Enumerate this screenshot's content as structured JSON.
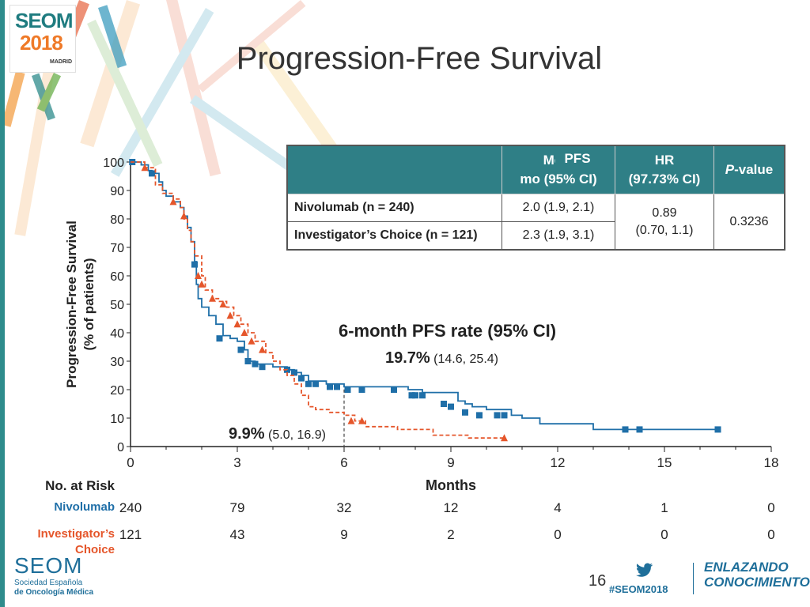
{
  "title": "Progression-Free Survival",
  "logo": {
    "line1": "SEOM",
    "line2": "2018",
    "city": "MADRID"
  },
  "footer": {
    "org_name": "SEOM",
    "org_line1": "Sociedad Española",
    "org_line2": "de Oncología Médica",
    "slide_number": "16",
    "hashtag": "#SEOM2018",
    "slogan_line1": "ENLAZANDO",
    "slogan_line2": "CONOCIMIENTO",
    "twitter_icon": "twitter-bird-icon"
  },
  "table": {
    "headers": {
      "arm": "",
      "median_a": "Medi",
      "median_b": "mo (95% CI)",
      "hr_a": "HR",
      "hr_b": "(97.73% CI)",
      "p": "P-value"
    },
    "overlay_tag": "PFS",
    "rows": [
      {
        "arm": "Nivolumab (n = 240)",
        "median": "2.0 (1.9, 2.1)"
      },
      {
        "arm": "Investigator’s Choice (n = 121)",
        "median": "2.3 (1.9, 3.1)"
      }
    ],
    "hr_line1": "0.89",
    "hr_line2": "(0.70, 1.1)",
    "p_value": "0.3236"
  },
  "annotations": {
    "rate_title": "6-month PFS rate (95% CI)",
    "nivo_rate": "19.7%",
    "nivo_ci": " (14.6, 25.4)",
    "ic_rate": "9.9%",
    "ic_ci": " (5.0, 16.9)"
  },
  "colors": {
    "nivolumab": "#1f6fa8",
    "investigator": "#e5562b",
    "header_bg": "#2f7f86"
  },
  "chart_data": {
    "type": "line",
    "xlabel": "Months",
    "ylabel": "Progression-Free Survival (% of patients)",
    "ylabel_line1": "Progression-Free Survival",
    "ylabel_line2": "(% of patients)",
    "xlim": [
      0,
      18
    ],
    "ylim": [
      0,
      100
    ],
    "xticks": [
      0,
      3,
      6,
      9,
      12,
      15,
      18
    ],
    "yticks": [
      0,
      10,
      20,
      30,
      40,
      50,
      60,
      70,
      80,
      90,
      100
    ],
    "reference_x": 6,
    "series": [
      {
        "name": "Nivolumab",
        "color": "#1f6fa8",
        "dash": false,
        "marker": "square",
        "points": [
          [
            0,
            100
          ],
          [
            0.3,
            99
          ],
          [
            0.5,
            97
          ],
          [
            0.6,
            96
          ],
          [
            0.8,
            93
          ],
          [
            0.9,
            90
          ],
          [
            1.0,
            88
          ],
          [
            1.2,
            86
          ],
          [
            1.4,
            84
          ],
          [
            1.5,
            81
          ],
          [
            1.6,
            77
          ],
          [
            1.7,
            72
          ],
          [
            1.8,
            65
          ],
          [
            1.85,
            57
          ],
          [
            1.9,
            52
          ],
          [
            2.0,
            49
          ],
          [
            2.2,
            46
          ],
          [
            2.4,
            43
          ],
          [
            2.6,
            39
          ],
          [
            2.8,
            38
          ],
          [
            3.0,
            37
          ],
          [
            3.2,
            34
          ],
          [
            3.3,
            30
          ],
          [
            3.5,
            29
          ],
          [
            4.0,
            28
          ],
          [
            4.4,
            27
          ],
          [
            4.6,
            26
          ],
          [
            4.8,
            25
          ],
          [
            5.0,
            23
          ],
          [
            5.5,
            22
          ],
          [
            6.0,
            21
          ],
          [
            6.5,
            21
          ],
          [
            7.0,
            21
          ],
          [
            7.5,
            21
          ],
          [
            7.8,
            20
          ],
          [
            8.2,
            19
          ],
          [
            9.0,
            19
          ],
          [
            9.2,
            16
          ],
          [
            9.4,
            15
          ],
          [
            9.6,
            14
          ],
          [
            10.0,
            13
          ],
          [
            10.5,
            13
          ],
          [
            10.7,
            11
          ],
          [
            11.0,
            10
          ],
          [
            11.5,
            8
          ],
          [
            13.0,
            6
          ],
          [
            14.0,
            6
          ],
          [
            15.0,
            6
          ],
          [
            16.5,
            6
          ]
        ],
        "censors": [
          [
            0.05,
            100
          ],
          [
            0.6,
            96
          ],
          [
            1.8,
            64
          ],
          [
            2.5,
            38
          ],
          [
            3.1,
            34
          ],
          [
            3.3,
            30
          ],
          [
            3.5,
            29
          ],
          [
            3.7,
            28
          ],
          [
            4.4,
            27
          ],
          [
            4.6,
            26
          ],
          [
            4.8,
            24
          ],
          [
            5.0,
            22
          ],
          [
            5.2,
            22
          ],
          [
            5.6,
            21
          ],
          [
            5.8,
            21
          ],
          [
            6.1,
            20
          ],
          [
            6.5,
            20
          ],
          [
            7.4,
            20
          ],
          [
            7.9,
            18
          ],
          [
            8.0,
            18
          ],
          [
            8.2,
            18
          ],
          [
            8.8,
            15
          ],
          [
            9.0,
            14
          ],
          [
            9.4,
            12
          ],
          [
            9.8,
            11
          ],
          [
            10.3,
            11
          ],
          [
            10.5,
            11
          ],
          [
            13.9,
            6
          ],
          [
            14.3,
            6
          ],
          [
            16.5,
            6
          ]
        ]
      },
      {
        "name": "Investigator’s Choice",
        "color": "#e5562b",
        "dash": true,
        "marker": "triangle",
        "points": [
          [
            0,
            100
          ],
          [
            0.4,
            98
          ],
          [
            0.7,
            92
          ],
          [
            0.9,
            89
          ],
          [
            1.2,
            87
          ],
          [
            1.4,
            84
          ],
          [
            1.5,
            80
          ],
          [
            1.6,
            76
          ],
          [
            1.7,
            72
          ],
          [
            1.8,
            67
          ],
          [
            2.0,
            60
          ],
          [
            2.1,
            55
          ],
          [
            2.3,
            52
          ],
          [
            2.5,
            51
          ],
          [
            2.7,
            49
          ],
          [
            2.9,
            46
          ],
          [
            3.1,
            43
          ],
          [
            3.3,
            40
          ],
          [
            3.5,
            37
          ],
          [
            3.8,
            33
          ],
          [
            4.0,
            30
          ],
          [
            4.2,
            27
          ],
          [
            4.4,
            25
          ],
          [
            4.6,
            22
          ],
          [
            4.8,
            18
          ],
          [
            5.0,
            14
          ],
          [
            5.2,
            13
          ],
          [
            5.6,
            12
          ],
          [
            6.0,
            11
          ],
          [
            6.3,
            9
          ],
          [
            6.6,
            7
          ],
          [
            7.0,
            7
          ],
          [
            7.5,
            6
          ],
          [
            8.0,
            6
          ],
          [
            8.5,
            4
          ],
          [
            9.0,
            4
          ],
          [
            9.5,
            3
          ],
          [
            10.0,
            3
          ],
          [
            10.5,
            3
          ]
        ],
        "censors": [
          [
            0.4,
            98
          ],
          [
            1.2,
            86
          ],
          [
            1.5,
            81
          ],
          [
            1.9,
            60
          ],
          [
            2.0,
            57
          ],
          [
            2.3,
            52
          ],
          [
            2.6,
            50
          ],
          [
            2.8,
            46
          ],
          [
            3.0,
            43
          ],
          [
            3.2,
            40
          ],
          [
            3.4,
            37
          ],
          [
            3.7,
            34
          ],
          [
            6.2,
            9
          ],
          [
            6.5,
            9
          ],
          [
            10.5,
            3
          ]
        ]
      }
    ],
    "risk_table": {
      "header": "No. at Risk",
      "rows": [
        {
          "name_line1": "Nivolumab",
          "name_line2": "",
          "values": [
            "240",
            "79",
            "32",
            "12",
            "4",
            "1",
            "0"
          ]
        },
        {
          "name_line1": "Investigator’s",
          "name_line2": "Choice",
          "values": [
            "121",
            "43",
            "9",
            "2",
            "0",
            "0",
            "0"
          ]
        }
      ]
    }
  }
}
